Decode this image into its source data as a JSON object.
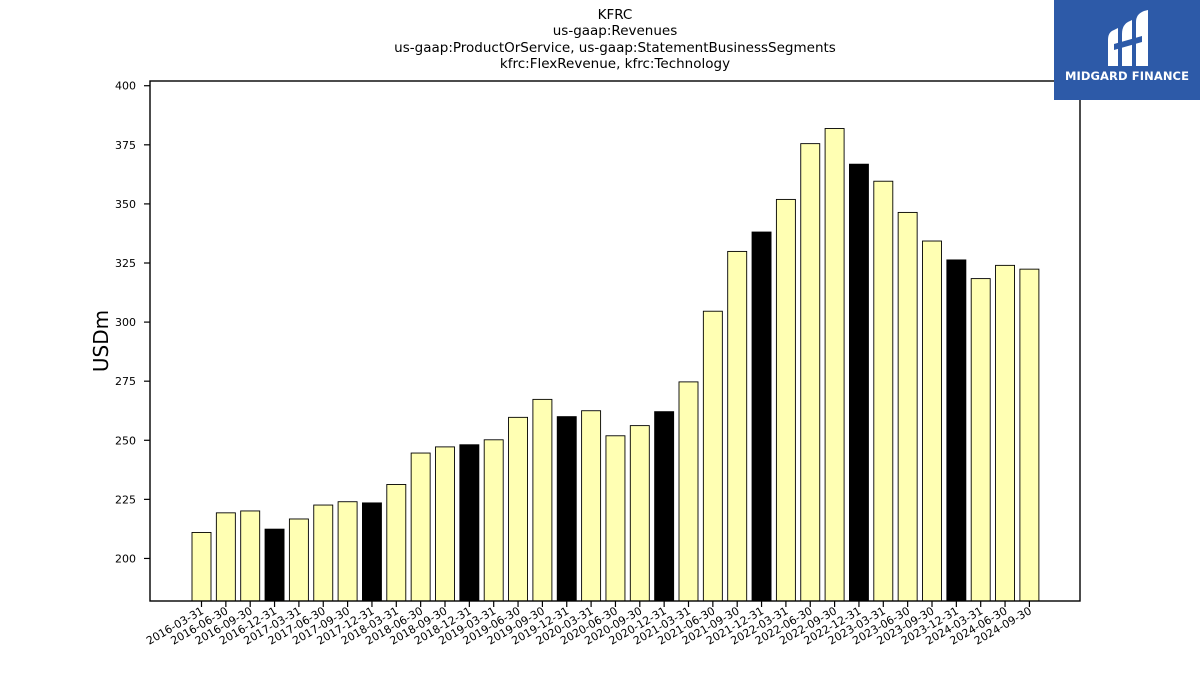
{
  "chart_data": {
    "type": "bar",
    "title_lines": [
      "KFRC",
      "us-gaap:Revenues",
      "us-gaap:ProductOrService, us-gaap:StatementBusinessSegments",
      "kfrc:FlexRevenue, kfrc:Technology"
    ],
    "xlabel": "",
    "ylabel": "USDm",
    "ylim": [
      182,
      402
    ],
    "yticks": [
      200,
      225,
      250,
      275,
      300,
      325,
      350,
      375,
      400
    ],
    "grid": false,
    "categories": [
      "2016-03-31",
      "2016-06-30",
      "2016-09-30",
      "2016-12-31",
      "2017-03-31",
      "2017-06-30",
      "2017-09-30",
      "2017-12-31",
      "2018-03-31",
      "2018-06-30",
      "2018-09-30",
      "2018-12-31",
      "2019-03-31",
      "2019-06-30",
      "2019-09-30",
      "2019-12-31",
      "2020-03-31",
      "2020-06-30",
      "2020-09-30",
      "2020-12-31",
      "2021-03-31",
      "2021-06-30",
      "2021-09-30",
      "2021-12-31",
      "2022-03-31",
      "2022-06-30",
      "2022-09-30",
      "2022-12-31",
      "2023-03-31",
      "2023-06-30",
      "2023-09-30",
      "2023-12-31",
      "2024-03-31",
      "2024-06-30",
      "2024-09-30"
    ],
    "values": [
      211.0,
      219.3,
      220.1,
      212.4,
      216.7,
      222.6,
      224.0,
      223.5,
      231.3,
      244.6,
      247.2,
      248.1,
      250.2,
      259.7,
      267.3,
      260.0,
      262.5,
      251.9,
      256.2,
      262.1,
      274.7,
      304.6,
      329.9,
      338.1,
      351.9,
      375.5,
      381.9,
      366.8,
      359.6,
      346.4,
      334.3,
      326.3,
      318.4,
      324.0,
      322.4
    ],
    "bar_colors": {
      "quarter": "#ffffb3",
      "year_end": "#000000",
      "edge": "#000000"
    }
  },
  "logo": {
    "text": "MIDGARD FINANCE",
    "background": "#2d5aa8"
  }
}
